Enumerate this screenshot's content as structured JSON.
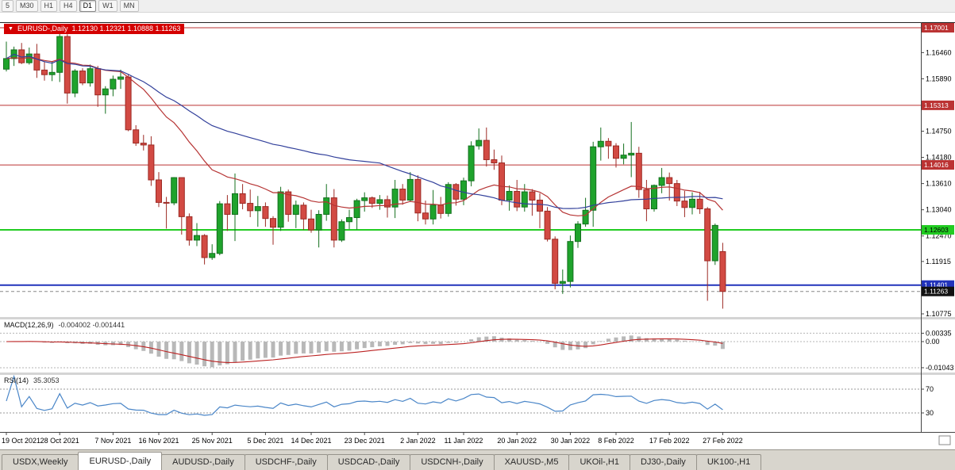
{
  "toolbar": {
    "timeframes": [
      "5",
      "M30",
      "H1",
      "H4",
      "D1",
      "W1",
      "MN"
    ],
    "active": "D1"
  },
  "chart": {
    "dropdown_icon": "▼",
    "title_symbol": "EURUSD-,Daily",
    "title_ohlc": "1.12130 1.12321 1.10888 1.11263"
  },
  "chart_data": {
    "type": "candlestick",
    "symbol": "EURUSD",
    "timeframe": "Daily",
    "ohlc_current": {
      "open": 1.1213,
      "high": 1.12321,
      "low": 1.10888,
      "close": 1.11263
    },
    "price_axis": {
      "view_max": 1.17001,
      "view_min": 1.10775,
      "ticks": [
        {
          "text": "1.16460",
          "v": 1.1646
        },
        {
          "text": "1.15890",
          "v": 1.1589
        },
        {
          "text": "1.14750",
          "v": 1.1475
        },
        {
          "text": "1.14180",
          "v": 1.1418
        },
        {
          "text": "1.13610",
          "v": 1.1361
        },
        {
          "text": "1.13040",
          "v": 1.1304
        },
        {
          "text": "1.12470",
          "v": 1.1247
        },
        {
          "text": "1.11915",
          "v": 1.11915
        },
        {
          "text": "1.10775",
          "v": 1.10775
        }
      ]
    },
    "levels": [
      {
        "value": 1.17001,
        "text": "1.17001",
        "color": "#bb3333",
        "line_width": 1,
        "text_color": "#ffffff"
      },
      {
        "value": 1.15313,
        "text": "1.15313",
        "color": "#bb3333",
        "line_width": 1,
        "text_color": "#ffffff"
      },
      {
        "value": 1.14016,
        "text": "1.14016",
        "color": "#bb3333",
        "line_width": 1,
        "text_color": "#ffffff"
      },
      {
        "value": 1.12603,
        "text": "1.12603",
        "color": "#22cc22",
        "line_width": 2,
        "text_color": "#000000"
      },
      {
        "value": 1.11401,
        "text": "1.11401",
        "color": "#2233bb",
        "line_width": 2,
        "text_color": "#ffffff"
      }
    ],
    "current_price": {
      "text": "1.11263",
      "value": 1.11263,
      "color": "#111111",
      "text_color": "#ffffff"
    },
    "x_labels": [
      {
        "text": "19 Oct 2021",
        "i": 0
      },
      {
        "text": "28 Oct 2021",
        "i": 7
      },
      {
        "text": "7 Nov 2021",
        "i": 14
      },
      {
        "text": "16 Nov 2021",
        "i": 20
      },
      {
        "text": "25 Nov 2021",
        "i": 27
      },
      {
        "text": "5 Dec 2021",
        "i": 34
      },
      {
        "text": "14 Dec 2021",
        "i": 40
      },
      {
        "text": "23 Dec 2021",
        "i": 47
      },
      {
        "text": "2 Jan 2022",
        "i": 54
      },
      {
        "text": "11 Jan 2022",
        "i": 60
      },
      {
        "text": "20 Jan 2022",
        "i": 67
      },
      {
        "text": "30 Jan 2022",
        "i": 74
      },
      {
        "text": "8 Feb 2022",
        "i": 80
      },
      {
        "text": "17 Feb 2022",
        "i": 87
      },
      {
        "text": "27 Feb 2022",
        "i": 94
      }
    ],
    "colors": {
      "bull": "#1fa32c",
      "bull_stroke": "#14701e",
      "bear": "#d24a43",
      "bear_stroke": "#9c2a24"
    },
    "candles": [
      [
        1.161,
        1.167,
        1.1605,
        1.1633
      ],
      [
        1.1633,
        1.1659,
        1.1617,
        1.1652
      ],
      [
        1.1652,
        1.1667,
        1.1621,
        1.1624
      ],
      [
        1.1624,
        1.1657,
        1.162,
        1.1643
      ],
      [
        1.1643,
        1.1665,
        1.1591,
        1.1608
      ],
      [
        1.1608,
        1.1627,
        1.1585,
        1.1598
      ],
      [
        1.1598,
        1.1626,
        1.1584,
        1.1603
      ],
      [
        1.1603,
        1.1692,
        1.1582,
        1.1681
      ],
      [
        1.1681,
        1.1686,
        1.1535,
        1.1558
      ],
      [
        1.1558,
        1.161,
        1.1549,
        1.1606
      ],
      [
        1.1606,
        1.1612,
        1.1575,
        1.158
      ],
      [
        1.158,
        1.162,
        1.1572,
        1.1611
      ],
      [
        1.1611,
        1.1617,
        1.1528,
        1.1554
      ],
      [
        1.1554,
        1.1573,
        1.1513,
        1.1567
      ],
      [
        1.1567,
        1.1596,
        1.1551,
        1.1588
      ],
      [
        1.1588,
        1.1609,
        1.1567,
        1.1593
      ],
      [
        1.1593,
        1.1598,
        1.1475,
        1.1478
      ],
      [
        1.1478,
        1.1488,
        1.1443,
        1.1449
      ],
      [
        1.1449,
        1.1467,
        1.1433,
        1.1445
      ],
      [
        1.1445,
        1.1464,
        1.1356,
        1.1369
      ],
      [
        1.1369,
        1.1386,
        1.131,
        1.132
      ],
      [
        1.132,
        1.1332,
        1.1263,
        1.1319
      ],
      [
        1.1319,
        1.1375,
        1.1314,
        1.1374
      ],
      [
        1.1374,
        1.1374,
        1.125,
        1.1289
      ],
      [
        1.1289,
        1.1296,
        1.1226,
        1.1238
      ],
      [
        1.1238,
        1.1275,
        1.1225,
        1.1248
      ],
      [
        1.1248,
        1.1251,
        1.1185,
        1.12
      ],
      [
        1.12,
        1.1229,
        1.1195,
        1.1209
      ],
      [
        1.1209,
        1.1323,
        1.1205,
        1.1317
      ],
      [
        1.1317,
        1.1336,
        1.1258,
        1.1294
      ],
      [
        1.1294,
        1.1383,
        1.1236,
        1.1339
      ],
      [
        1.1339,
        1.136,
        1.1305,
        1.1318
      ],
      [
        1.1318,
        1.1348,
        1.1288,
        1.1302
      ],
      [
        1.1302,
        1.1334,
        1.1267,
        1.1311
      ],
      [
        1.1311,
        1.132,
        1.1267,
        1.1285
      ],
      [
        1.1285,
        1.129,
        1.1228,
        1.1266
      ],
      [
        1.1266,
        1.1354,
        1.1258,
        1.1343
      ],
      [
        1.1343,
        1.1348,
        1.1278,
        1.1294
      ],
      [
        1.1294,
        1.1324,
        1.1264,
        1.1314
      ],
      [
        1.1314,
        1.132,
        1.126,
        1.1284
      ],
      [
        1.1284,
        1.1304,
        1.1254,
        1.126
      ],
      [
        1.126,
        1.1303,
        1.1222,
        1.1294
      ],
      [
        1.1294,
        1.136,
        1.128,
        1.133
      ],
      [
        1.133,
        1.1349,
        1.1222,
        1.1238
      ],
      [
        1.1238,
        1.1283,
        1.1234,
        1.1278
      ],
      [
        1.1278,
        1.1304,
        1.1262,
        1.1287
      ],
      [
        1.1287,
        1.1328,
        1.1261,
        1.1324
      ],
      [
        1.1324,
        1.1342,
        1.13,
        1.133
      ],
      [
        1.133,
        1.1333,
        1.1308,
        1.1318
      ],
      [
        1.1318,
        1.1336,
        1.1304,
        1.1326
      ],
      [
        1.1326,
        1.1335,
        1.1287,
        1.131
      ],
      [
        1.131,
        1.1369,
        1.1286,
        1.1349
      ],
      [
        1.1349,
        1.136,
        1.1315,
        1.1325
      ],
      [
        1.1325,
        1.1386,
        1.1321,
        1.137
      ],
      [
        1.137,
        1.1379,
        1.1279,
        1.1297
      ],
      [
        1.1297,
        1.1324,
        1.1272,
        1.1284
      ],
      [
        1.1284,
        1.1347,
        1.1272,
        1.1314
      ],
      [
        1.1314,
        1.1332,
        1.1285,
        1.1296
      ],
      [
        1.1296,
        1.1364,
        1.1289,
        1.1359
      ],
      [
        1.1359,
        1.1362,
        1.1313,
        1.1327
      ],
      [
        1.1327,
        1.1374,
        1.1314,
        1.1367
      ],
      [
        1.1367,
        1.1453,
        1.1355,
        1.1443
      ],
      [
        1.1443,
        1.1481,
        1.1435,
        1.1455
      ],
      [
        1.1455,
        1.1483,
        1.1398,
        1.1413
      ],
      [
        1.1413,
        1.1435,
        1.1391,
        1.1406
      ],
      [
        1.1406,
        1.1422,
        1.1314,
        1.1325
      ],
      [
        1.1325,
        1.1357,
        1.1302,
        1.1344
      ],
      [
        1.1344,
        1.1369,
        1.1301,
        1.131
      ],
      [
        1.131,
        1.136,
        1.13,
        1.1343
      ],
      [
        1.1343,
        1.1349,
        1.1291,
        1.1325
      ],
      [
        1.1325,
        1.134,
        1.1264,
        1.1301
      ],
      [
        1.1301,
        1.131,
        1.1235,
        1.124
      ],
      [
        1.124,
        1.1246,
        1.1131,
        1.1144
      ],
      [
        1.1144,
        1.1174,
        1.1121,
        1.1148
      ],
      [
        1.1148,
        1.1248,
        1.1135,
        1.1235
      ],
      [
        1.1235,
        1.1279,
        1.1221,
        1.1273
      ],
      [
        1.1273,
        1.133,
        1.1267,
        1.1303
      ],
      [
        1.1303,
        1.1452,
        1.1267,
        1.1441
      ],
      [
        1.1441,
        1.1483,
        1.1411,
        1.1453
      ],
      [
        1.1453,
        1.146,
        1.1415,
        1.1443
      ],
      [
        1.1443,
        1.1449,
        1.1396,
        1.1416
      ],
      [
        1.1416,
        1.1448,
        1.1403,
        1.1423
      ],
      [
        1.1423,
        1.1495,
        1.1375,
        1.1427
      ],
      [
        1.1427,
        1.1441,
        1.133,
        1.1348
      ],
      [
        1.1348,
        1.1369,
        1.1279,
        1.1306
      ],
      [
        1.1306,
        1.1359,
        1.13,
        1.1357
      ],
      [
        1.1357,
        1.1395,
        1.134,
        1.1374
      ],
      [
        1.1374,
        1.1385,
        1.1324,
        1.1361
      ],
      [
        1.1361,
        1.1369,
        1.1312,
        1.1323
      ],
      [
        1.1323,
        1.1345,
        1.1288,
        1.1309
      ],
      [
        1.1309,
        1.1342,
        1.1294,
        1.1327
      ],
      [
        1.1327,
        1.1343,
        1.1295,
        1.1306
      ],
      [
        1.1306,
        1.131,
        1.1106,
        1.1193
      ],
      [
        1.1193,
        1.1274,
        1.1184,
        1.127
      ],
      [
        1.1213,
        1.12321,
        1.10888,
        1.11263
      ]
    ],
    "indicators": {
      "moving_averages": [
        {
          "type": "EMA",
          "period": 20,
          "color": "#b63434"
        },
        {
          "type": "SMA",
          "period": 50,
          "color": "#32409b"
        }
      ],
      "macd": {
        "label": "MACD(12,26,9)",
        "values_text": "-0.004002 -0.001441",
        "fast": 12,
        "slow": 26,
        "signal": 9,
        "main_value": -0.004002,
        "signal_value": -0.001441,
        "axis_labels": [
          {
            "text": "0.00335",
            "v": 0.00335
          },
          {
            "text": "0.00",
            "v": 0
          },
          {
            "text": "-0.01043",
            "v": -0.01043
          }
        ],
        "hist_color": "#b8b8b8",
        "signal_color": "#bb2222"
      },
      "rsi": {
        "label": "RSI(14)",
        "value_text": "35.3053",
        "period": 14,
        "value": 35.3053,
        "levels": [
          {
            "text": "70",
            "v": 70
          },
          {
            "text": "30",
            "v": 30
          }
        ],
        "line_color": "#4a86c8"
      }
    }
  },
  "tabs": {
    "items": [
      "USDX,Weekly",
      "EURUSD-,Daily",
      "AUDUSD-,Daily",
      "USDCHF-,Daily",
      "USDCAD-,Daily",
      "USDCNH-,Daily",
      "XAUUSD-,M5",
      "UKOil-,H1",
      "DJ30-,Daily",
      "UK100-,H1"
    ],
    "active": "EURUSD-,Daily"
  }
}
